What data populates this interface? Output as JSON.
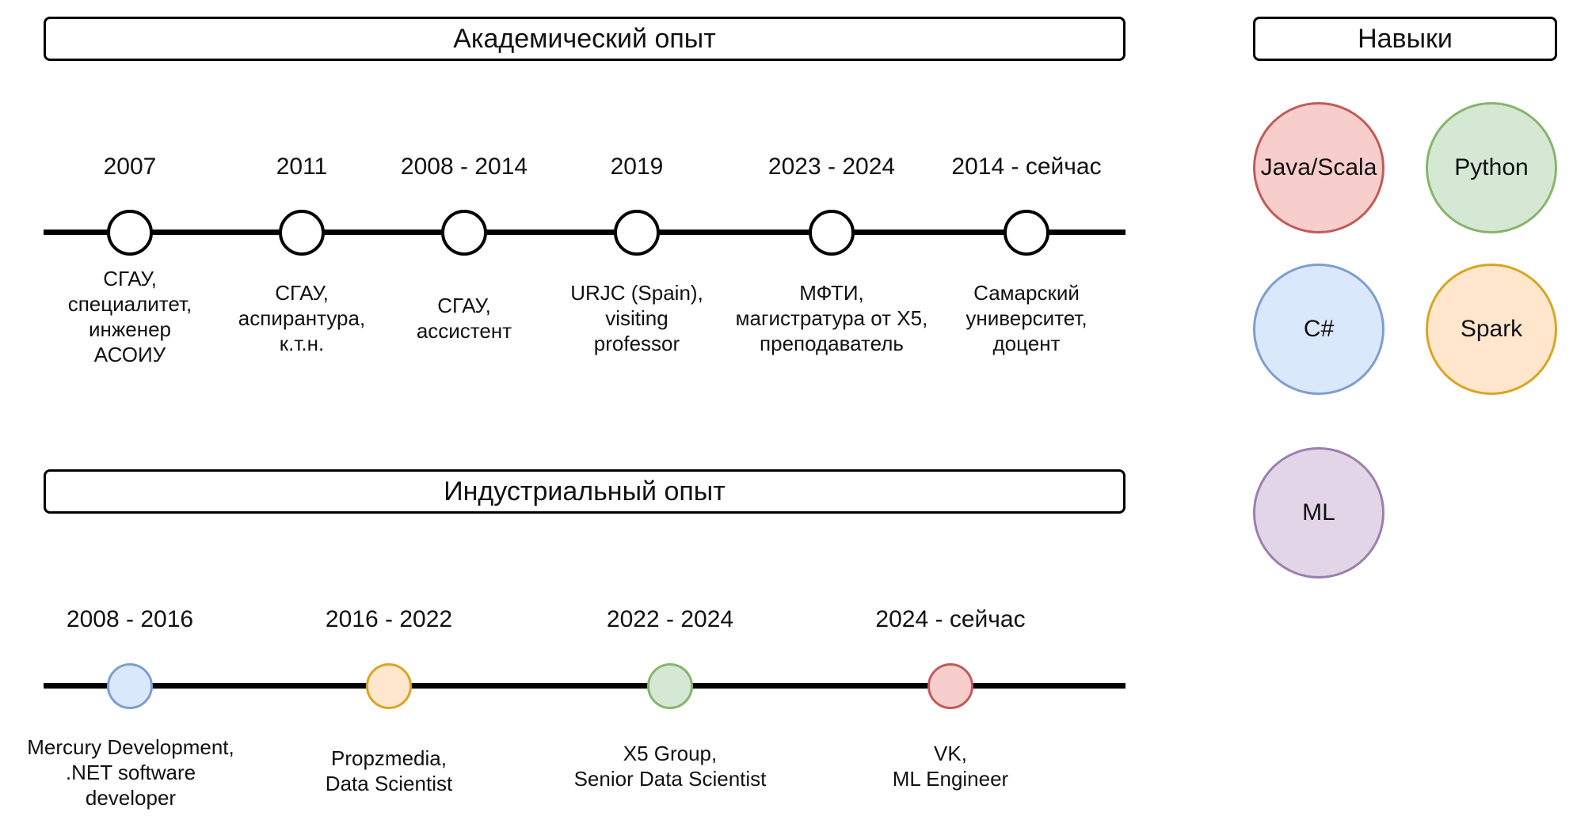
{
  "academic": {
    "title": "Академический опыт",
    "events": [
      {
        "year": "2007",
        "lines": [
          "СГАУ,",
          "специалитет,",
          "инженер",
          "АСОИУ"
        ]
      },
      {
        "year": "2011",
        "lines": [
          "СГАУ,",
          "аспирантура,",
          "к.т.н."
        ]
      },
      {
        "year": "2008 - 2014",
        "lines": [
          "СГАУ,",
          "ассистент"
        ]
      },
      {
        "year": "2019",
        "lines": [
          "URJC (Spain),",
          "visiting",
          "professor"
        ]
      },
      {
        "year": "2023 - 2024",
        "lines": [
          "МФТИ,",
          "магистратура от X5,",
          "преподаватель"
        ]
      },
      {
        "year": "2014 - сейчас",
        "lines": [
          "Самарский",
          "университет,",
          "доцент"
        ]
      }
    ]
  },
  "industry": {
    "title": "Индустриальный опыт",
    "events": [
      {
        "year": "2008 - 2016",
        "lines": [
          "Mercury Development,",
          ".NET software",
          "developer"
        ],
        "color": "#dae8fc",
        "border": "#7c9ed2"
      },
      {
        "year": "2016 - 2022",
        "lines": [
          "Propzmedia,",
          "Data Scientist"
        ],
        "color": "#ffe6cc",
        "border": "#d9a520"
      },
      {
        "year": "2022 - 2024",
        "lines": [
          "X5 Group,",
          "Senior Data Scientist"
        ],
        "color": "#d5e8d4",
        "border": "#86b56a"
      },
      {
        "year": "2024 - сейчас",
        "lines": [
          "VK,",
          "ML Engineer"
        ],
        "color": "#f8cecc",
        "border": "#c25a5a"
      }
    ]
  },
  "skills": {
    "title": "Навыки",
    "items": [
      {
        "label": "Java/Scala",
        "color": "#f8cecc",
        "border": "#c25a5a"
      },
      {
        "label": "Python",
        "color": "#d5e8d4",
        "border": "#86b56a"
      },
      {
        "label": "C#",
        "color": "#dae8fc",
        "border": "#7c9ed2"
      },
      {
        "label": "Spark",
        "color": "#ffe6cc",
        "border": "#d9a520"
      },
      {
        "label": "ML",
        "color": "#e1d5e7",
        "border": "#9c7fae"
      }
    ]
  }
}
